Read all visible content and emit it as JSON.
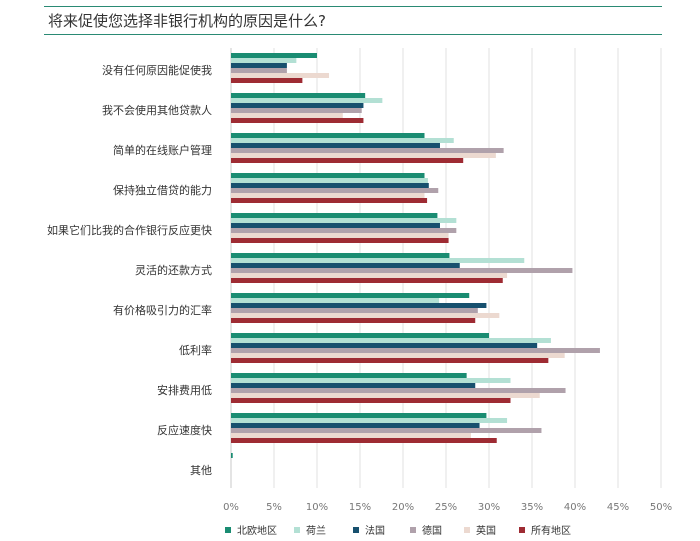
{
  "chart_data": {
    "type": "bar",
    "orientation": "horizontal",
    "title": "将来促使您选择非银行机构的原因是什么?",
    "categories": [
      "没有任何原因能促使我",
      "我不会使用其他贷款人",
      "简单的在线账户管理",
      "保持独立借贷的能力",
      "如果它们比我的合作银行反应更快",
      "灵活的还款方式",
      "有价格吸引力的汇率",
      "低利率",
      "安排费用低",
      "反应速度快",
      "其他"
    ],
    "series": [
      {
        "name": "北欧地区",
        "color": "#1a8c72",
        "values": [
          10.0,
          15.6,
          22.5,
          22.5,
          24.0,
          25.4,
          27.7,
          30.0,
          27.4,
          29.7,
          0.2
        ]
      },
      {
        "name": "荷兰",
        "color": "#b3e0d4",
        "values": [
          7.6,
          17.6,
          25.9,
          22.9,
          26.2,
          34.1,
          24.2,
          37.2,
          32.5,
          32.1,
          0.0
        ]
      },
      {
        "name": "法国",
        "color": "#17506e",
        "values": [
          6.5,
          15.4,
          24.3,
          23.0,
          24.3,
          26.6,
          29.7,
          35.6,
          28.4,
          28.9,
          0.0
        ]
      },
      {
        "name": "德国",
        "color": "#b0a1ab",
        "values": [
          6.5,
          15.2,
          31.7,
          24.1,
          26.2,
          39.7,
          28.7,
          42.9,
          38.9,
          36.1,
          0.0
        ]
      },
      {
        "name": "英国",
        "color": "#ecd9d0",
        "values": [
          11.4,
          13.0,
          30.8,
          22.5,
          25.3,
          32.1,
          31.2,
          38.8,
          35.9,
          27.9,
          0.0
        ]
      },
      {
        "name": "所有地区",
        "color": "#9e2b33",
        "values": [
          8.3,
          15.4,
          27.0,
          22.8,
          25.3,
          31.6,
          28.4,
          36.9,
          32.5,
          30.9,
          0.0
        ]
      }
    ],
    "xlim": [
      0,
      50
    ],
    "xticks": [
      "0%",
      "5%",
      "10%",
      "15%",
      "20%",
      "25%",
      "30%",
      "35%",
      "40%",
      "45%",
      "50%"
    ],
    "grid": true,
    "legend_position": "bottom"
  }
}
